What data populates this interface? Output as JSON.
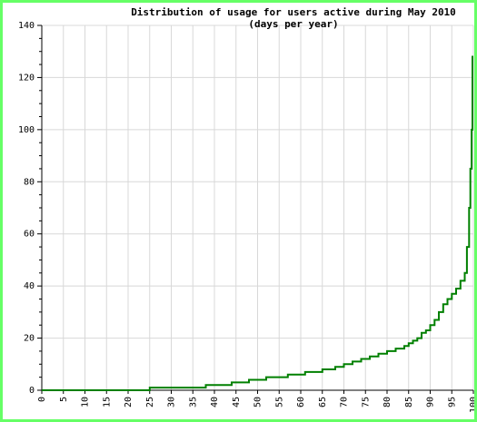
{
  "chart_data": {
    "type": "line",
    "title": "Distribution of usage for users active during May 2010",
    "subtitle": "(days per year)",
    "xlabel": "",
    "ylabel": "",
    "xlim": [
      0,
      100
    ],
    "ylim": [
      0,
      140
    ],
    "x_ticks": [
      0,
      5,
      10,
      15,
      20,
      25,
      30,
      35,
      40,
      45,
      50,
      55,
      60,
      65,
      70,
      75,
      80,
      85,
      90,
      95,
      100
    ],
    "y_ticks": [
      0,
      20,
      40,
      60,
      80,
      100,
      120,
      140
    ],
    "grid": true,
    "series": [
      {
        "color": "#008000",
        "x": [
          0,
          25,
          25,
          38,
          38,
          44,
          44,
          48,
          48,
          52,
          52,
          57,
          57,
          61,
          61,
          65,
          65,
          68,
          68,
          70,
          70,
          72,
          72,
          74,
          74,
          76,
          76,
          78,
          78,
          80,
          80,
          82,
          82,
          84,
          84,
          85,
          85,
          86,
          86,
          87,
          87,
          88,
          88,
          89,
          89,
          90,
          90,
          91,
          91,
          92,
          92,
          93,
          93,
          94,
          94,
          95,
          95,
          96,
          96,
          97,
          97,
          98,
          98,
          98.5,
          98.5,
          99,
          99,
          99.3,
          99.3,
          99.6,
          99.6,
          99.8,
          99.8,
          100
        ],
        "y": [
          0,
          0,
          1,
          1,
          2,
          2,
          3,
          3,
          4,
          4,
          5,
          5,
          6,
          6,
          7,
          7,
          8,
          8,
          9,
          9,
          10,
          10,
          11,
          11,
          12,
          12,
          13,
          13,
          14,
          14,
          15,
          15,
          16,
          16,
          17,
          17,
          18,
          18,
          19,
          19,
          20,
          20,
          22,
          22,
          23,
          23,
          25,
          25,
          27,
          27,
          30,
          30,
          33,
          33,
          35,
          35,
          37,
          37,
          39,
          39,
          42,
          42,
          45,
          45,
          55,
          55,
          70,
          70,
          85,
          85,
          100,
          100,
          128,
          128
        ]
      }
    ]
  }
}
